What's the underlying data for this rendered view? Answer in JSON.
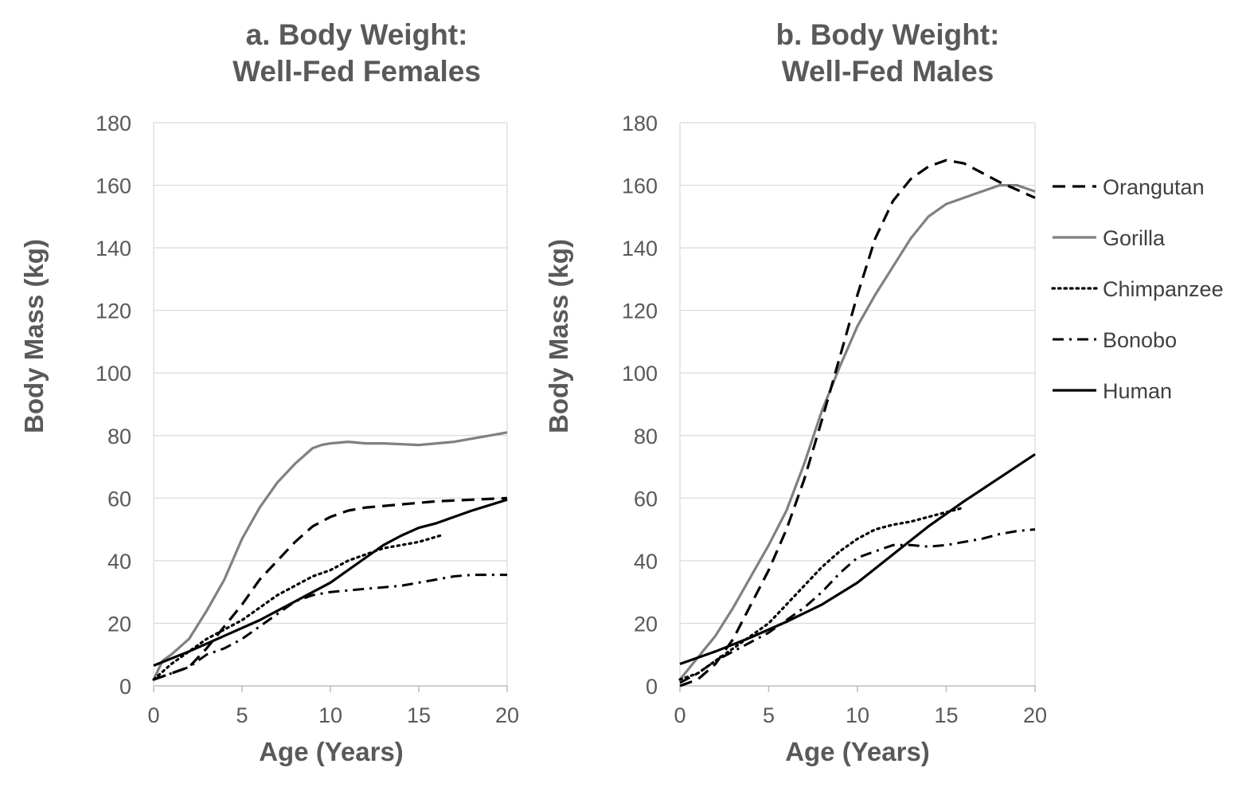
{
  "chart_data": [
    {
      "id": "female",
      "type": "line",
      "title": [
        "a. Body Weight:",
        "Well-Fed Females"
      ],
      "xlabel": "Age (Years)",
      "ylabel": "Body Mass (kg)",
      "xlim": [
        0,
        20
      ],
      "ylim": [
        0,
        180
      ],
      "xticks": [
        0,
        5,
        10,
        15,
        20
      ],
      "yticks": [
        0,
        20,
        40,
        60,
        80,
        100,
        120,
        140,
        160,
        180
      ],
      "grid": true,
      "series": [
        {
          "name": "Orangutan",
          "points": [
            [
              0,
              2
            ],
            [
              1,
              4
            ],
            [
              2,
              6
            ],
            [
              3,
              12
            ],
            [
              4,
              19
            ],
            [
              5,
              26
            ],
            [
              6,
              34
            ],
            [
              7,
              40
            ],
            [
              8,
              46
            ],
            [
              9,
              51
            ],
            [
              10,
              54
            ],
            [
              11,
              56
            ],
            [
              12,
              57
            ],
            [
              14,
              58
            ],
            [
              16,
              59
            ],
            [
              18,
              59.5
            ],
            [
              20,
              60
            ]
          ]
        },
        {
          "name": "Gorilla",
          "points": [
            [
              0,
              2
            ],
            [
              0.5,
              8
            ],
            [
              1,
              10
            ],
            [
              2,
              15
            ],
            [
              3,
              24
            ],
            [
              4,
              34
            ],
            [
              5,
              47
            ],
            [
              6,
              57
            ],
            [
              7,
              65
            ],
            [
              8,
              71
            ],
            [
              9,
              76
            ],
            [
              9.5,
              77
            ],
            [
              10,
              77.5
            ],
            [
              11,
              78
            ],
            [
              12,
              77.5
            ],
            [
              13,
              77.5
            ],
            [
              15,
              77
            ],
            [
              16,
              77.5
            ],
            [
              17,
              78
            ],
            [
              18,
              79
            ],
            [
              19,
              80
            ],
            [
              20,
              81
            ]
          ]
        },
        {
          "name": "Chimpanzee",
          "points": [
            [
              0,
              2
            ],
            [
              1,
              7
            ],
            [
              2,
              11
            ],
            [
              3,
              15
            ],
            [
              4,
              18
            ],
            [
              5,
              21
            ],
            [
              6,
              25
            ],
            [
              7,
              29
            ],
            [
              8,
              32
            ],
            [
              9,
              35
            ],
            [
              10,
              37
            ],
            [
              11,
              40
            ],
            [
              12,
              42
            ],
            [
              13,
              44
            ],
            [
              14,
              45
            ],
            [
              15,
              46
            ],
            [
              16.2,
              48
            ]
          ]
        },
        {
          "name": "Bonobo",
          "points": [
            [
              0,
              2
            ],
            [
              1,
              4
            ],
            [
              2,
              6
            ],
            [
              3,
              10
            ],
            [
              4,
              12
            ],
            [
              5,
              15
            ],
            [
              6,
              19
            ],
            [
              7,
              23
            ],
            [
              8,
              27
            ],
            [
              9,
              29
            ],
            [
              10,
              30
            ],
            [
              11,
              30.5
            ],
            [
              12,
              31
            ],
            [
              13,
              31.5
            ],
            [
              14,
              32
            ],
            [
              15,
              33
            ],
            [
              16,
              34
            ],
            [
              17,
              35
            ],
            [
              18,
              35.5
            ],
            [
              20,
              35.5
            ]
          ]
        },
        {
          "name": "Human",
          "points": [
            [
              0,
              6.5
            ],
            [
              2,
              11
            ],
            [
              4,
              16
            ],
            [
              6,
              21
            ],
            [
              8,
              27
            ],
            [
              10,
              33
            ],
            [
              11,
              37
            ],
            [
              12,
              41
            ],
            [
              13,
              45
            ],
            [
              14,
              48
            ],
            [
              15,
              50.5
            ],
            [
              16,
              52
            ],
            [
              17,
              54
            ],
            [
              18,
              56
            ],
            [
              20,
              59.5
            ]
          ]
        }
      ]
    },
    {
      "id": "male",
      "type": "line",
      "title": [
        "b. Body Weight:",
        "Well-Fed Males"
      ],
      "xlabel": "Age (Years)",
      "ylabel": "Body Mass (kg)",
      "xlim": [
        0,
        20
      ],
      "ylim": [
        0,
        180
      ],
      "xticks": [
        0,
        5,
        10,
        15,
        20
      ],
      "yticks": [
        0,
        20,
        40,
        60,
        80,
        100,
        120,
        140,
        160,
        180
      ],
      "grid": true,
      "legend_position": "right",
      "series": [
        {
          "name": "Orangutan",
          "points": [
            [
              0,
              0
            ],
            [
              1,
              2
            ],
            [
              2,
              7
            ],
            [
              3,
              15
            ],
            [
              4,
              26
            ],
            [
              5,
              37
            ],
            [
              6,
              50
            ],
            [
              7,
              66
            ],
            [
              8,
              85
            ],
            [
              9,
              105
            ],
            [
              10,
              125
            ],
            [
              11,
              143
            ],
            [
              12,
              155
            ],
            [
              13,
              162
            ],
            [
              14,
              166
            ],
            [
              15,
              168
            ],
            [
              16,
              167
            ],
            [
              17,
              164
            ],
            [
              18,
              161
            ],
            [
              19,
              158.5
            ],
            [
              20,
              156
            ]
          ]
        },
        {
          "name": "Gorilla",
          "points": [
            [
              0,
              2
            ],
            [
              1,
              9
            ],
            [
              2,
              16
            ],
            [
              3,
              25
            ],
            [
              4,
              35
            ],
            [
              5,
              45
            ],
            [
              6,
              56
            ],
            [
              7,
              71
            ],
            [
              8,
              88
            ],
            [
              9,
              102
            ],
            [
              10,
              115
            ],
            [
              11,
              125
            ],
            [
              12,
              134
            ],
            [
              13,
              143
            ],
            [
              14,
              150
            ],
            [
              15,
              154
            ],
            [
              16,
              156
            ],
            [
              17,
              158
            ],
            [
              18,
              160
            ],
            [
              19,
              160
            ],
            [
              20,
              158
            ]
          ]
        },
        {
          "name": "Chimpanzee",
          "points": [
            [
              0,
              2
            ],
            [
              1,
              4
            ],
            [
              2,
              8
            ],
            [
              3,
              12
            ],
            [
              4,
              16
            ],
            [
              5,
              20
            ],
            [
              6,
              26
            ],
            [
              7,
              32
            ],
            [
              8,
              38
            ],
            [
              9,
              43
            ],
            [
              10,
              47
            ],
            [
              11,
              50
            ],
            [
              12,
              51.5
            ],
            [
              13,
              52.5
            ],
            [
              14,
              54
            ],
            [
              15,
              55.5
            ],
            [
              16,
              57
            ]
          ]
        },
        {
          "name": "Bonobo",
          "points": [
            [
              0,
              1
            ],
            [
              1,
              4
            ],
            [
              2,
              8
            ],
            [
              3,
              11
            ],
            [
              4,
              14
            ],
            [
              5,
              17
            ],
            [
              6,
              21
            ],
            [
              7,
              25
            ],
            [
              8,
              30
            ],
            [
              9,
              36
            ],
            [
              10,
              41
            ],
            [
              11,
              43
            ],
            [
              12,
              45
            ],
            [
              13,
              45
            ],
            [
              14,
              44.5
            ],
            [
              15,
              45
            ],
            [
              16,
              46
            ],
            [
              17,
              47
            ],
            [
              18,
              48.5
            ],
            [
              19,
              49.5
            ],
            [
              20,
              50
            ]
          ]
        },
        {
          "name": "Human",
          "points": [
            [
              0,
              7
            ],
            [
              2,
              11
            ],
            [
              4,
              15.5
            ],
            [
              6,
              20.5
            ],
            [
              8,
              26
            ],
            [
              10,
              33
            ],
            [
              12,
              42
            ],
            [
              14,
              51
            ],
            [
              16,
              59
            ],
            [
              18,
              66.5
            ],
            [
              20,
              74
            ]
          ]
        }
      ]
    }
  ],
  "legend": [
    {
      "name": "Orangutan",
      "style": "dashed",
      "color": "#000000"
    },
    {
      "name": "Gorilla",
      "style": "solid",
      "color": "#808080"
    },
    {
      "name": "Chimpanzee",
      "style": "dotted",
      "color": "#000000"
    },
    {
      "name": "Bonobo",
      "style": "dash-dot",
      "color": "#000000"
    },
    {
      "name": "Human",
      "style": "solid",
      "color": "#000000"
    }
  ],
  "colors": {
    "grid": "#d9d9d9",
    "text": "#595959",
    "gorilla": "#808080",
    "dark": "#000000"
  }
}
